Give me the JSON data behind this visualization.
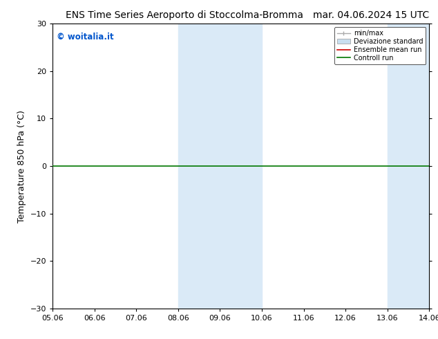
{
  "title_left": "ENS Time Series Aeroporto di Stoccolma-Bromma",
  "title_right": "mar. 04.06.2024 15 UTC",
  "ylabel": "Temperature 850 hPa (°C)",
  "ylim": [
    -30,
    30
  ],
  "yticks": [
    -30,
    -20,
    -10,
    0,
    10,
    20,
    30
  ],
  "xtick_labels": [
    "05.06",
    "06.06",
    "07.06",
    "08.06",
    "09.06",
    "10.06",
    "11.06",
    "12.06",
    "13.06",
    "14.06"
  ],
  "x_values": [
    0,
    1,
    2,
    3,
    4,
    5,
    6,
    7,
    8,
    9
  ],
  "shaded_bands": [
    {
      "xmin": 3,
      "xmax": 5,
      "color": "#daeaf7"
    },
    {
      "xmin": 8,
      "xmax": 9,
      "color": "#daeaf7"
    }
  ],
  "control_run_y": 0,
  "control_run_color": "#007700",
  "ensemble_mean_color": "#cc0000",
  "minmax_color": "#aaaaaa",
  "std_color": "#c8dff0",
  "watermark_text": "© woitalia.it",
  "watermark_color": "#0055cc",
  "background_color": "#ffffff",
  "legend_entries": [
    "min/max",
    "Deviazione standard",
    "Ensemble mean run",
    "Controll run"
  ],
  "legend_line_colors": [
    "#aaaaaa",
    "#c8dff0",
    "#cc0000",
    "#007700"
  ],
  "title_fontsize": 10,
  "axis_fontsize": 9,
  "tick_fontsize": 8
}
